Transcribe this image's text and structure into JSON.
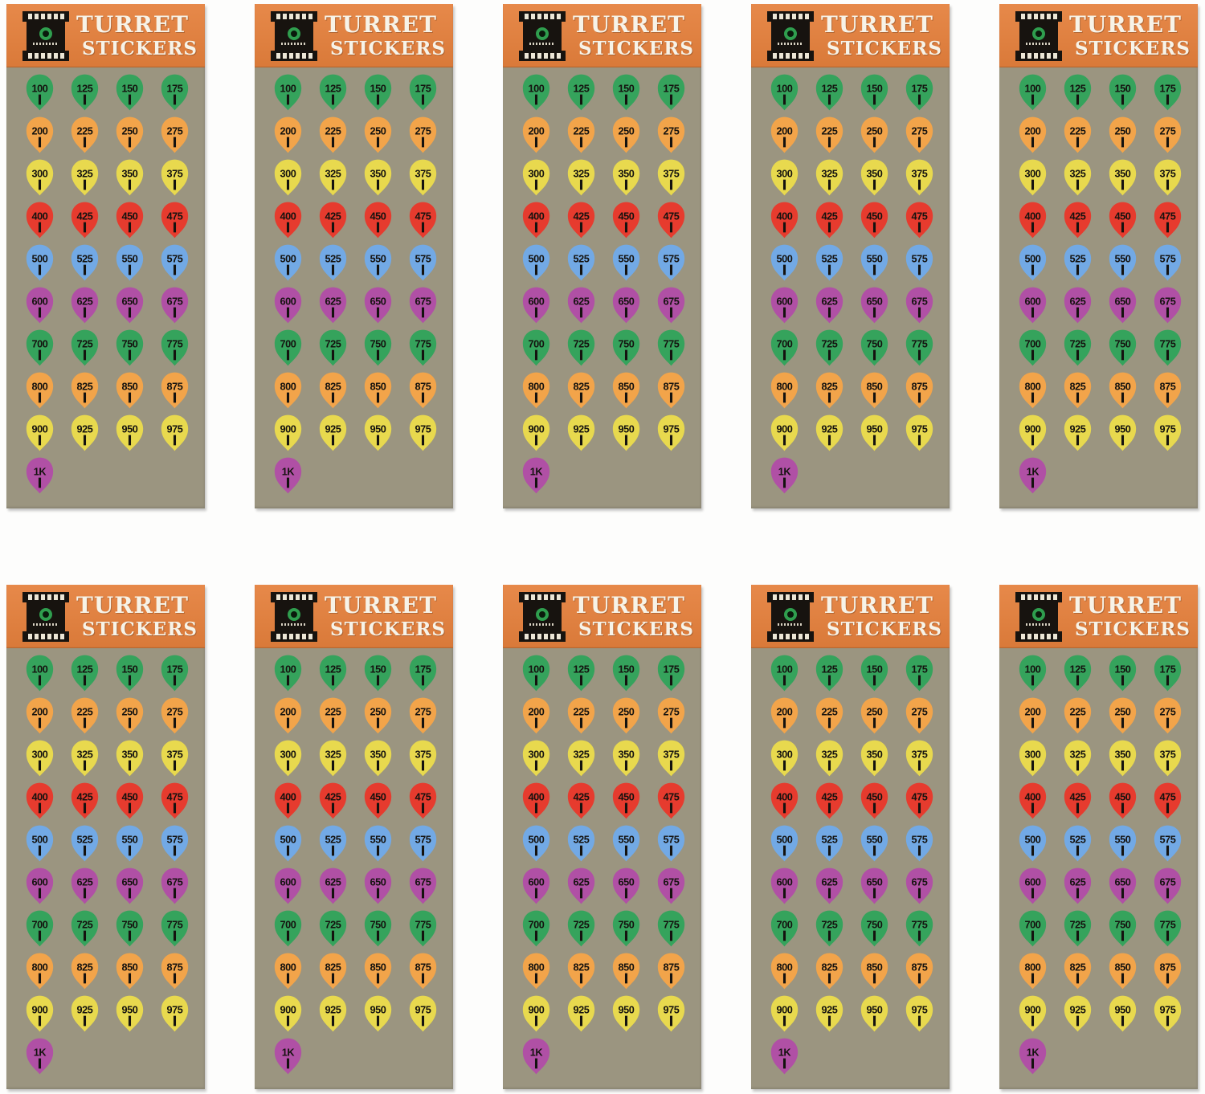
{
  "page": {
    "background": "#fdfdfc"
  },
  "grid": {
    "rows": 2,
    "cols": 5,
    "sheet_count": 10
  },
  "sheet": {
    "title_line1": "TURRET",
    "title_line2": "STICKERS",
    "header_bg": "#e5803c",
    "body_bg": "#9b9580",
    "title_color": "#f7f3e8",
    "ink_color": "#14120f",
    "logo": {
      "name": "film-turret-logo",
      "black": "#17130f",
      "ring_green": "#2f9e4e",
      "hole_color": "#ece6d6"
    },
    "sticker_rows": [
      {
        "color": "#35a35c",
        "values": [
          "100",
          "125",
          "150",
          "175"
        ]
      },
      {
        "color": "#f2a44a",
        "values": [
          "200",
          "225",
          "250",
          "275"
        ]
      },
      {
        "color": "#e8d94e",
        "values": [
          "300",
          "325",
          "350",
          "375"
        ]
      },
      {
        "color": "#e63b2e",
        "values": [
          "400",
          "425",
          "450",
          "475"
        ]
      },
      {
        "color": "#72a9e5",
        "values": [
          "500",
          "525",
          "550",
          "575"
        ]
      },
      {
        "color": "#b050a5",
        "values": [
          "600",
          "625",
          "650",
          "675"
        ]
      },
      {
        "color": "#35a35c",
        "values": [
          "700",
          "725",
          "750",
          "775"
        ]
      },
      {
        "color": "#f2a44a",
        "values": [
          "800",
          "825",
          "850",
          "875"
        ]
      },
      {
        "color": "#e8d94e",
        "values": [
          "900",
          "925",
          "950",
          "975"
        ]
      },
      {
        "color": "#b050a5",
        "values": [
          "1K"
        ]
      }
    ]
  }
}
